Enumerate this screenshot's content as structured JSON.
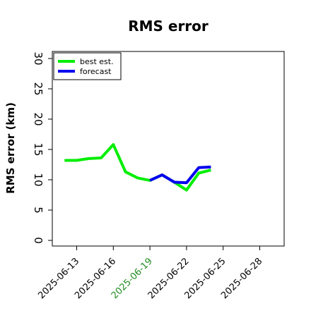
{
  "chart_data": {
    "type": "line",
    "title": "RMS error",
    "xlabel": "",
    "ylabel": "RMS error (km)",
    "ylim": [
      0,
      30
    ],
    "xlim": [
      "2025-06-11",
      "2025-06-30"
    ],
    "yticks": [
      "0",
      "5",
      "10",
      "15",
      "20",
      "25",
      "30"
    ],
    "xticks": [
      "2025-06-13",
      "2025-06-16",
      "2025-06-19",
      "2025-06-22",
      "2025-06-25",
      "2025-06-28"
    ],
    "highlighted_xtick": "2025-06-19",
    "highlight_color": "#228b22",
    "grid": false,
    "legend_position": "top-left",
    "series": [
      {
        "name": "best est.",
        "color": "#00ee00",
        "points": [
          {
            "x": "2025-06-12",
            "y": 13.2
          },
          {
            "x": "2025-06-13",
            "y": 13.2
          },
          {
            "x": "2025-06-14",
            "y": 13.5
          },
          {
            "x": "2025-06-15",
            "y": 13.6
          },
          {
            "x": "2025-06-16",
            "y": 15.8
          },
          {
            "x": "2025-06-17",
            "y": 11.3
          },
          {
            "x": "2025-06-18",
            "y": 10.3
          },
          {
            "x": "2025-06-19",
            "y": 9.9
          },
          {
            "x": "2025-06-20",
            "y": 10.8
          },
          {
            "x": "2025-06-21",
            "y": 9.6
          },
          {
            "x": "2025-06-22",
            "y": 8.3
          },
          {
            "x": "2025-06-23",
            "y": 11.1
          },
          {
            "x": "2025-06-24",
            "y": 11.6
          }
        ]
      },
      {
        "name": "forecast",
        "color": "#0000ee",
        "points": [
          {
            "x": "2025-06-19",
            "y": 9.9
          },
          {
            "x": "2025-06-20",
            "y": 10.8
          },
          {
            "x": "2025-06-21",
            "y": 9.6
          },
          {
            "x": "2025-06-22",
            "y": 9.5
          },
          {
            "x": "2025-06-23",
            "y": 12.0
          },
          {
            "x": "2025-06-24",
            "y": 12.1
          }
        ]
      }
    ]
  }
}
